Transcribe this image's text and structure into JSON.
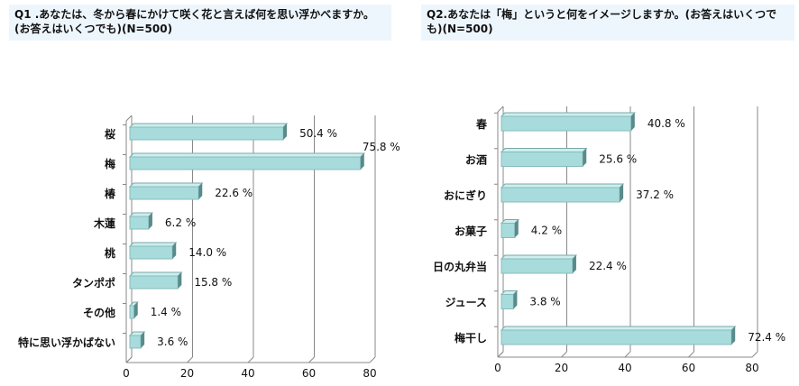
{
  "chart_data": [
    {
      "type": "bar",
      "orientation": "horizontal",
      "title": "Q1 .あなたは、冬から春にかけて咲く花と言えば何を思い浮かべますか。(お答えはいくつでも)(N=500)",
      "categories": [
        "桜",
        "梅",
        "椿",
        "木蓮",
        "桃",
        "タンポポ",
        "その他",
        "特に思い浮かばない"
      ],
      "values": [
        50.4,
        75.8,
        22.6,
        6.2,
        14.0,
        15.8,
        1.4,
        3.6
      ],
      "labels": [
        "50.4 %",
        "75.8 %",
        "22.6 %",
        "6.2 %",
        "14.0 %",
        "15.8 %",
        "1.4 %",
        "3.6 %"
      ],
      "xlim": [
        0,
        80
      ],
      "xticks": [
        "0",
        "20",
        "40",
        "60",
        "80"
      ],
      "grid": true,
      "bar_color": "#a8dcdc"
    },
    {
      "type": "bar",
      "orientation": "horizontal",
      "title": "Q2.あなたは「梅」というと何をイメージしますか。(お答えはいくつでも)(N=500)",
      "categories": [
        "春",
        "お酒",
        "おにぎり",
        "お菓子",
        "日の丸弁当",
        "ジュース",
        "梅干し"
      ],
      "values": [
        40.8,
        25.6,
        37.2,
        4.2,
        22.4,
        3.8,
        72.4
      ],
      "labels": [
        "40.8 %",
        "25.6 %",
        "37.2 %",
        "4.2 %",
        "22.4 %",
        "3.8 %",
        "72.4 %"
      ],
      "xlim": [
        0,
        80
      ],
      "xticks": [
        "0",
        "20",
        "40",
        "60",
        "80"
      ],
      "grid": true,
      "bar_color": "#a8dcdc"
    }
  ]
}
